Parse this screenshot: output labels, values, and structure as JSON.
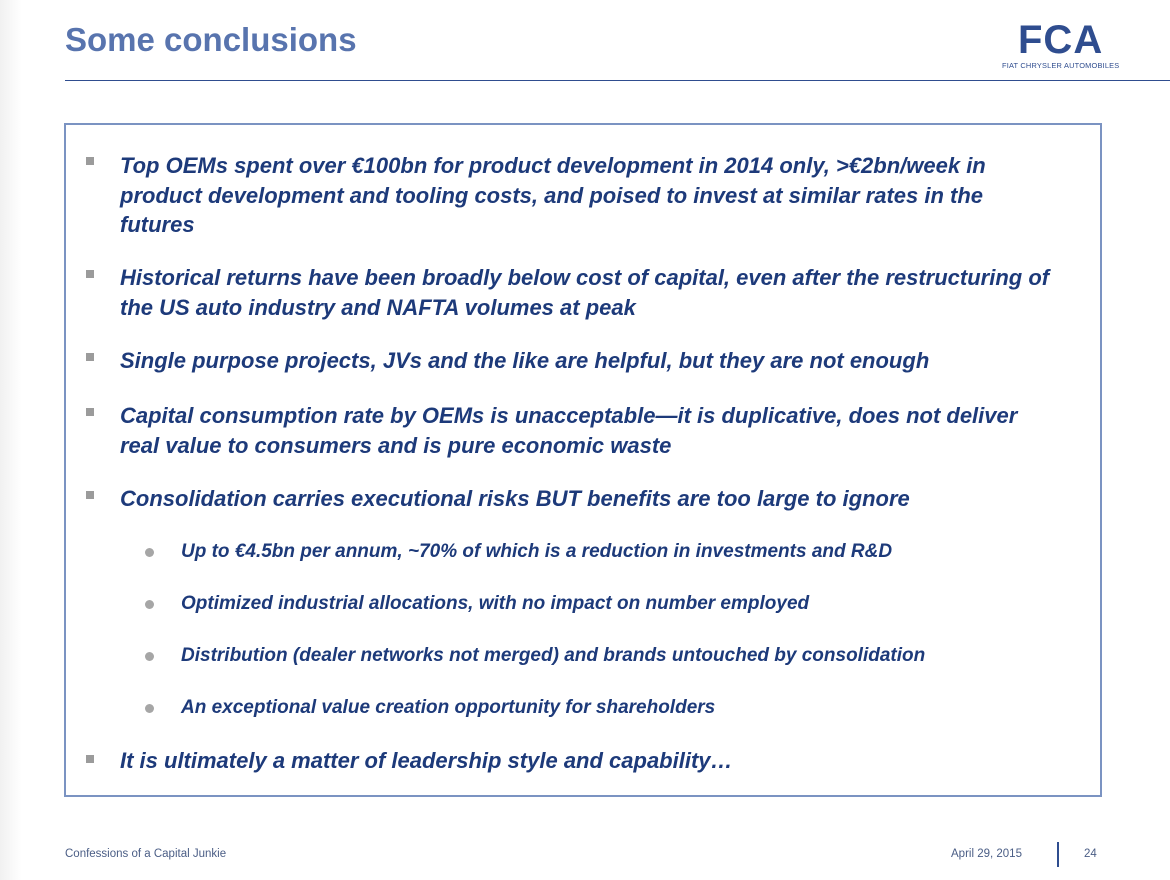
{
  "slide": {
    "title": "Some conclusions"
  },
  "logo": {
    "mark": "FCA",
    "subtitle": "FIAT CHRYSLER AUTOMOBILES"
  },
  "bullets": [
    "Top OEMs spent over €100bn for product development in 2014 only, >€2bn/week in product development and tooling costs, and poised to invest at similar rates in the futures",
    "Historical returns have been broadly below cost of capital, even after the restructuring of the US auto industry and NAFTA volumes at peak",
    "Single purpose projects, JVs and the like are helpful, but they are not enough",
    "Capital consumption rate by OEMs is unacceptable—it is duplicative, does not deliver real value to consumers and is pure economic waste",
    "Consolidation carries executional risks BUT benefits are too large to ignore",
    "It is ultimately a matter of leadership style and capability…"
  ],
  "sub_bullets": [
    "Up to €4.5bn per annum, ~70% of which is a reduction in investments and R&D",
    "Optimized industrial allocations, with no impact on number employed",
    "Distribution (dealer networks not merged) and brands untouched by consolidation",
    "An exceptional value creation opportunity for shareholders"
  ],
  "footer": {
    "left": "Confessions of a Capital Junkie",
    "date": "April 29, 2015",
    "page": "24"
  }
}
